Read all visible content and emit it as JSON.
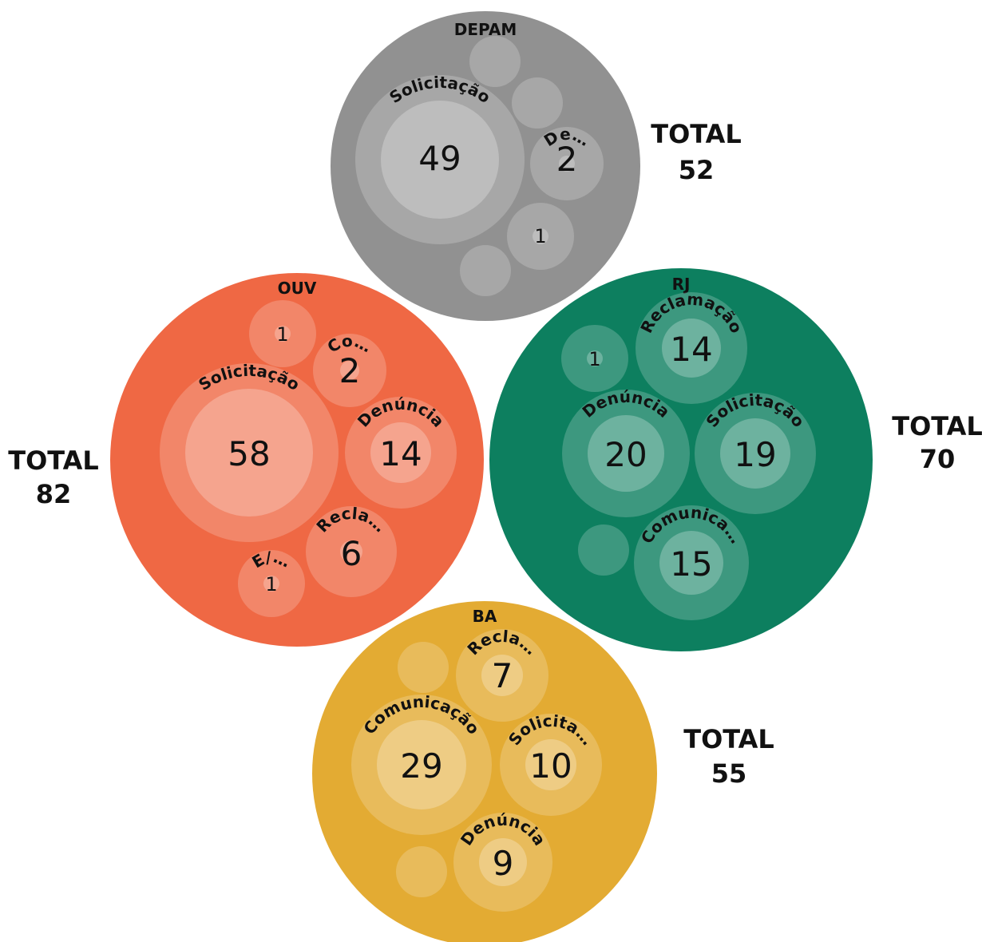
{
  "chart_data": {
    "type": "packed-bubble",
    "total_prefix": "TOTAL",
    "groups": [
      {
        "name": "DEPAM",
        "total": 52,
        "color": "#919191",
        "items": [
          {
            "label": "Solicitação",
            "value": 49
          },
          {
            "label": "De…",
            "value": 2
          },
          {
            "label": "",
            "value": 1
          },
          {
            "label": "",
            "value": 0
          },
          {
            "label": "",
            "value": 0
          },
          {
            "label": "",
            "value": 0
          }
        ]
      },
      {
        "name": "OUV",
        "total": 82,
        "color": "#ef6844",
        "items": [
          {
            "label": "Solicitação",
            "value": 58
          },
          {
            "label": "Denúncia",
            "value": 14
          },
          {
            "label": "Recla…",
            "value": 6
          },
          {
            "label": "Co…",
            "value": 2
          },
          {
            "label": "",
            "value": 1
          },
          {
            "label": "E/…",
            "value": 1
          }
        ]
      },
      {
        "name": "RJ",
        "total": 70,
        "color": "#0d7f5f",
        "items": [
          {
            "label": "Reclamação",
            "value": 14
          },
          {
            "label": "Denúncia",
            "value": 20
          },
          {
            "label": "Solicitação",
            "value": 19
          },
          {
            "label": "Comunica…",
            "value": 15
          },
          {
            "label": "",
            "value": 1
          },
          {
            "label": "",
            "value": 0
          }
        ]
      },
      {
        "name": "BA",
        "total": 55,
        "color": "#e3ab33",
        "items": [
          {
            "label": "Recla…",
            "value": 7
          },
          {
            "label": "Comunicação",
            "value": 29
          },
          {
            "label": "Solicita…",
            "value": 10
          },
          {
            "label": "Denúncia",
            "value": 9
          },
          {
            "label": "",
            "value": 0
          },
          {
            "label": "",
            "value": 0
          }
        ]
      }
    ]
  }
}
